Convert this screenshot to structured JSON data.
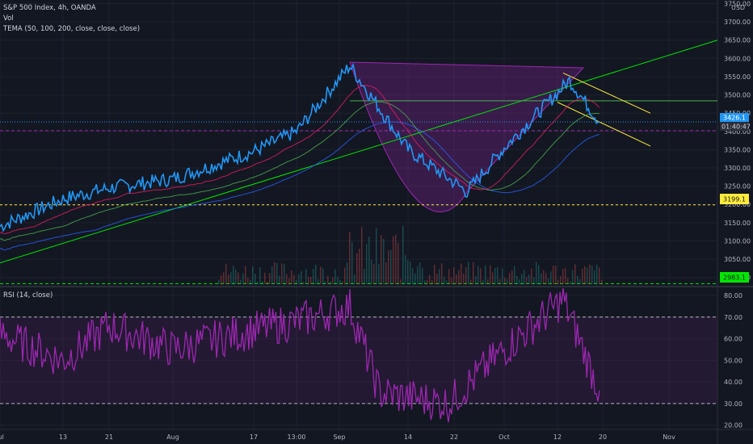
{
  "header": {
    "symbol": "S&P 500 Index, 4h, OANDA",
    "vol": "Vol",
    "tema": "TEMA (50, 100, 200, close, close, close)",
    "rsi": "RSI (14, close)"
  },
  "price_axis": {
    "unit": "USD",
    "ticks": [
      "3750.00",
      "3700.00",
      "3650.00",
      "3600.00",
      "3550.00",
      "3500.00",
      "3450.00",
      "3400.00",
      "3350.00",
      "3300.00",
      "3250.00",
      "3200.00",
      "3150.00",
      "3100.00",
      "3050.00",
      "3000.00"
    ]
  },
  "rsi_axis": {
    "ticks": [
      "80.00",
      "70.00",
      "60.00",
      "50.00",
      "40.00",
      "30.00",
      "20.00"
    ]
  },
  "time_axis": {
    "ticks": [
      "Jul",
      "13",
      "21",
      "Aug",
      "17",
      "13:00",
      "Sep",
      "14",
      "22",
      "Oct",
      "12",
      "20",
      "Nov"
    ]
  },
  "badges": {
    "last_price": "3426.1",
    "countdown": "01:40:47",
    "support": "3199.1",
    "low_level": "2983.1"
  },
  "colors": {
    "background": "#131722",
    "price_line": "#2196f3",
    "trend_line": "#00e600",
    "resistance_line": "#4caf50",
    "support_line": "#ffeb3b",
    "cup_fill": "#9c27b0",
    "rsi_line": "#9c27b0",
    "tema_50": "#e91e63",
    "tema_100": "#4caf50",
    "tema_200": "#2962ff"
  },
  "chart_data": [
    {
      "type": "line",
      "title": "S&P 500 Index, 4h, OANDA",
      "ylabel": "USD",
      "ylim": [
        2975,
        3760
      ],
      "x": [
        "Jul",
        "13",
        "21",
        "Aug",
        "17",
        "13:00",
        "Sep",
        "14",
        "22",
        "Oct",
        "12",
        "20"
      ],
      "series": [
        {
          "name": "S&P 500 Index",
          "values": [
            3140,
            3215,
            3245,
            3270,
            3345,
            3400,
            3580,
            3350,
            3235,
            3355,
            3540,
            3426
          ]
        }
      ]
    },
    {
      "type": "line",
      "title": "RSI (14, close)",
      "ylim": [
        18,
        83
      ],
      "x": [
        "Jul",
        "13",
        "21",
        "Aug",
        "17",
        "13:00",
        "Sep",
        "14",
        "22",
        "Oct",
        "12",
        "20"
      ],
      "series": [
        {
          "name": "RSI (14, close)",
          "values": [
            62,
            50,
            66,
            55,
            64,
            68,
            75,
            35,
            30,
            55,
            78,
            36
          ]
        }
      ]
    }
  ]
}
